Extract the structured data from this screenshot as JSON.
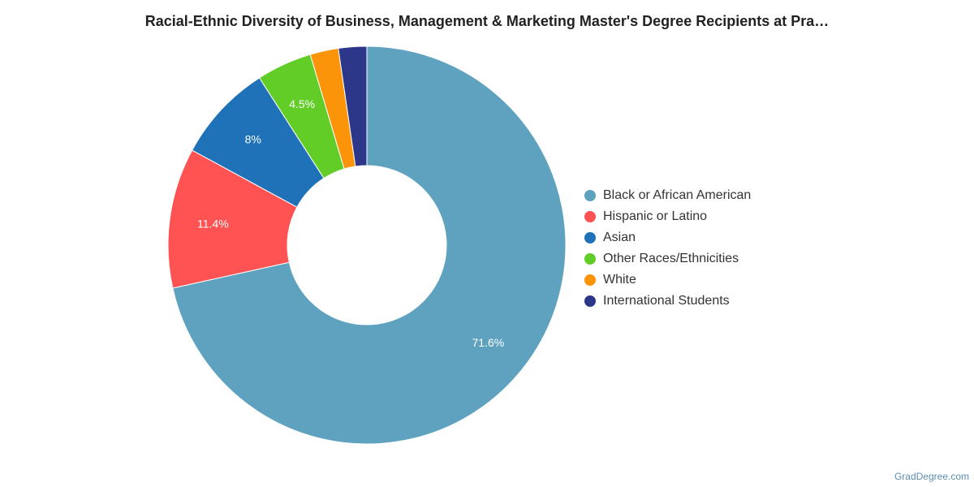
{
  "title": "Racial-Ethnic Diversity of Business, Management & Marketing Master's Degree Recipients at Pra…",
  "credit": "GradDegree.com",
  "chart_data": {
    "type": "pie",
    "donut": true,
    "legend_position": "right",
    "slices": [
      {
        "label": "Black or African American",
        "value": 71.6,
        "color": "#5ea2c0",
        "data_label": "71.6%"
      },
      {
        "label": "Hispanic or Latino",
        "value": 11.4,
        "color": "#fe5253",
        "data_label": "11.4%"
      },
      {
        "label": "Asian",
        "value": 8.0,
        "color": "#1f72b8",
        "data_label": "8%"
      },
      {
        "label": "Other Races/Ethnicities",
        "value": 4.5,
        "color": "#62cd26",
        "data_label": "4.5%"
      },
      {
        "label": "White",
        "value": 2.3,
        "color": "#fb9408",
        "data_label": ""
      },
      {
        "label": "International Students",
        "value": 2.3,
        "color": "#2c378a",
        "data_label": ""
      }
    ]
  }
}
